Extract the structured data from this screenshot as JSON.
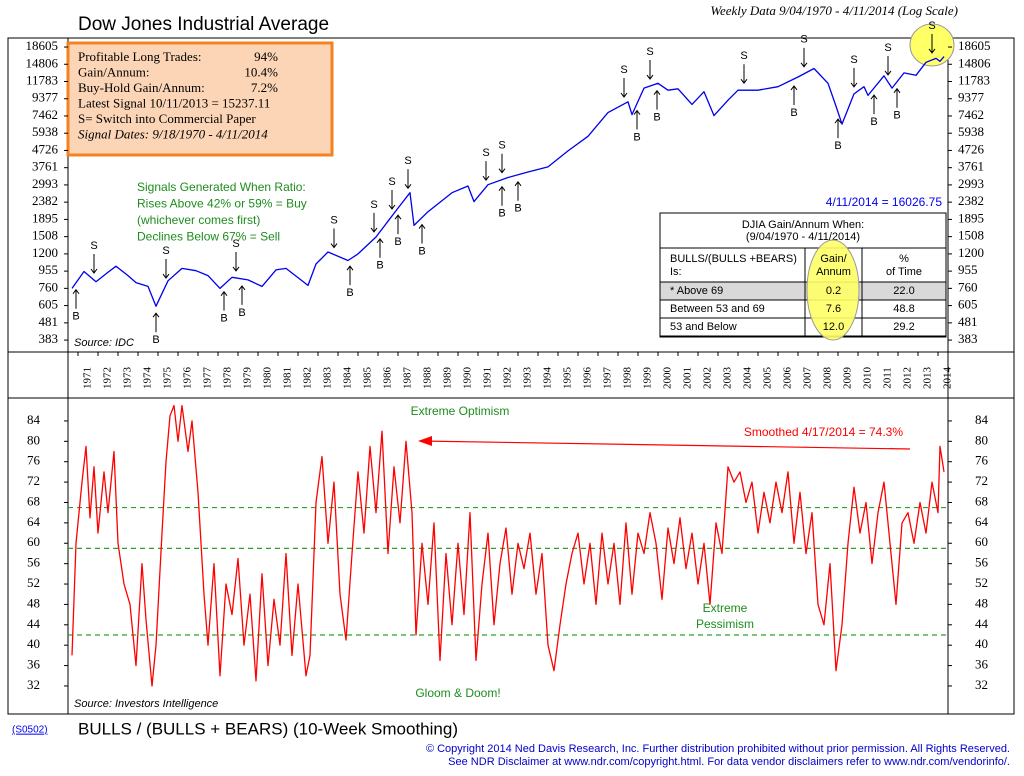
{
  "chart_data": [
    {
      "type": "line",
      "title": "Dow Jones Industrial Average",
      "subtitle": "Weekly Data 9/04/1970 - 4/11/2014 (Log Scale)",
      "log_scale": true,
      "color": "#0000ee",
      "x": [
        1970.7,
        1971.3,
        1971.9,
        1972.5,
        1972.9,
        1973.5,
        1973.9,
        1974.5,
        1974.9,
        1975.5,
        1976.2,
        1976.9,
        1977.5,
        1978.1,
        1978.7,
        1979.5,
        1980.2,
        1980.9,
        1981.4,
        1982.5,
        1982.9,
        1983.5,
        1984.5,
        1985.0,
        1985.9,
        1986.5,
        1987.0,
        1987.6,
        1987.8,
        1988.5,
        1989.7,
        1990.5,
        1990.8,
        1991.5,
        1992.5,
        1993.5,
        1994.5,
        1995.5,
        1996.5,
        1997.5,
        1998.5,
        1998.7,
        1999.3,
        2000.0,
        2000.5,
        2001.0,
        2001.7,
        2002.3,
        2002.8,
        2003.5,
        2004.0,
        2005.0,
        2006.0,
        2007.0,
        2007.8,
        2008.5,
        2008.9,
        2009.2,
        2009.8,
        2010.3,
        2010.5,
        2011.3,
        2011.7,
        2012.3,
        2012.9,
        2013.4,
        2013.9,
        2014.1,
        2014.3
      ],
      "values": [
        760,
        950,
        830,
        940,
        1020,
        900,
        820,
        780,
        600,
        840,
        990,
        960,
        900,
        760,
        880,
        850,
        780,
        970,
        990,
        790,
        1050,
        1230,
        1100,
        1200,
        1500,
        1850,
        2200,
        2700,
        1750,
        2100,
        2700,
        2950,
        2400,
        3000,
        3300,
        3550,
        3800,
        4700,
        5700,
        7800,
        9000,
        7600,
        10800,
        11500,
        10500,
        10700,
        8700,
        10300,
        7500,
        9200,
        10500,
        10500,
        11000,
        12500,
        14000,
        11500,
        8500,
        6700,
        10000,
        11000,
        9800,
        12700,
        10800,
        13200,
        12800,
        15200,
        16000,
        15400,
        16400
      ],
      "xlim": [
        1970.5,
        2014.5
      ],
      "xticks": [
        1971,
        1972,
        1973,
        1974,
        1975,
        1976,
        1977,
        1978,
        1979,
        1980,
        1981,
        1982,
        1983,
        1984,
        1985,
        1986,
        1987,
        1988,
        1989,
        1990,
        1991,
        1992,
        1993,
        1994,
        1995,
        1996,
        1997,
        1998,
        1999,
        2000,
        2001,
        2002,
        2003,
        2004,
        2005,
        2006,
        2007,
        2008,
        2009,
        2010,
        2011,
        2012,
        2013,
        2014
      ],
      "ylim": [
        327,
        20970
      ],
      "yticks": [
        383,
        481,
        605,
        760,
        955,
        1200,
        1508,
        1895,
        2382,
        2993,
        3761,
        4726,
        5938,
        7462,
        9377,
        11783,
        14806,
        18605
      ],
      "signals": [
        {
          "x": 1970.9,
          "label": "B"
        },
        {
          "x": 1971.8,
          "label": "S"
        },
        {
          "x": 1974.9,
          "label": "B"
        },
        {
          "x": 1975.4,
          "label": "S"
        },
        {
          "x": 1978.3,
          "label": "B"
        },
        {
          "x": 1978.9,
          "label": "S"
        },
        {
          "x": 1979.2,
          "label": "B"
        },
        {
          "x": 1983.8,
          "label": "S"
        },
        {
          "x": 1984.6,
          "label": "B"
        },
        {
          "x": 1985.8,
          "label": "S"
        },
        {
          "x": 1986.1,
          "label": "B"
        },
        {
          "x": 1986.7,
          "label": "S"
        },
        {
          "x": 1987.0,
          "label": "B"
        },
        {
          "x": 1987.5,
          "label": "S"
        },
        {
          "x": 1988.2,
          "label": "B"
        },
        {
          "x": 1991.4,
          "label": "S"
        },
        {
          "x": 1992.2,
          "label": "S"
        },
        {
          "x": 1992.2,
          "label": "B"
        },
        {
          "x": 1993.0,
          "label": "B"
        },
        {
          "x": 1998.3,
          "label": "S"
        },
        {
          "x": 1998.95,
          "label": "B"
        },
        {
          "x": 1999.6,
          "label": "S"
        },
        {
          "x": 1999.95,
          "label": "B"
        },
        {
          "x": 2004.3,
          "label": "S"
        },
        {
          "x": 2006.8,
          "label": "B"
        },
        {
          "x": 2007.3,
          "label": "S"
        },
        {
          "x": 2009.0,
          "label": "B"
        },
        {
          "x": 2009.8,
          "label": "S"
        },
        {
          "x": 2010.8,
          "label": "B"
        },
        {
          "x": 2011.5,
          "label": "S"
        },
        {
          "x": 2011.95,
          "label": "B"
        },
        {
          "x": 2013.7,
          "label": "S"
        }
      ],
      "info_box": {
        "rows": [
          [
            "Profitable Long Trades:",
            "94%"
          ],
          [
            "Gain/Annum:",
            "10.4%"
          ],
          [
            "Buy-Hold Gain/Annum:",
            "7.2%"
          ]
        ],
        "lines": [
          "Latest Signal 10/11/2013 = 15237.11",
          "S= Switch into Commercial Paper"
        ],
        "italic": "Signal Dates: 9/18/1970 - 4/11/2014"
      },
      "note": [
        "Signals Generated When Ratio:",
        "Rises Above 42% or 59% = Buy",
        "(whichever comes first)",
        "Declines Below 67% = Sell"
      ],
      "latest_label": "4/11/2014 = 16026.75",
      "source": "Source: IDC",
      "table": {
        "title": [
          "DJIA Gain/Annum When:",
          "(9/04/1970 - 4/11/2014)"
        ],
        "header": [
          [
            "BULLS/(BULLS +BEARS)",
            "Is:"
          ],
          [
            "Gain/",
            "Annum"
          ],
          [
            "%",
            "of Time"
          ]
        ],
        "rows": [
          [
            "* Above 69",
            "0.2",
            "22.0"
          ],
          [
            "Between 53 and 69",
            "7.6",
            "48.8"
          ],
          [
            "53 and Below",
            "12.0",
            "29.2"
          ]
        ]
      }
    },
    {
      "type": "line",
      "title": "BULLS / (BULLS + BEARS) (10-Week Smoothing)",
      "code": "(S0502)",
      "color": "#ff0000",
      "x": [
        1970.7,
        1970.9,
        1971.2,
        1971.4,
        1971.6,
        1971.8,
        1972.0,
        1972.3,
        1972.5,
        1972.8,
        1973.0,
        1973.3,
        1973.6,
        1973.9,
        1974.2,
        1974.4,
        1974.7,
        1974.9,
        1975.2,
        1975.4,
        1975.6,
        1975.8,
        1976.0,
        1976.2,
        1976.5,
        1976.7,
        1977.0,
        1977.3,
        1977.5,
        1977.8,
        1978.1,
        1978.4,
        1978.7,
        1979.0,
        1979.3,
        1979.6,
        1979.9,
        1980.2,
        1980.5,
        1980.8,
        1981.1,
        1981.4,
        1981.7,
        1982.0,
        1982.4,
        1982.6,
        1982.9,
        1983.2,
        1983.5,
        1983.8,
        1984.1,
        1984.4,
        1984.7,
        1985.0,
        1985.3,
        1985.6,
        1985.9,
        1986.2,
        1986.5,
        1986.8,
        1987.1,
        1987.4,
        1987.7,
        1987.9,
        1988.2,
        1988.5,
        1988.8,
        1989.1,
        1989.4,
        1989.7,
        1990.0,
        1990.3,
        1990.6,
        1990.9,
        1991.2,
        1991.5,
        1991.8,
        1992.1,
        1992.4,
        1992.7,
        1993.0,
        1993.3,
        1993.6,
        1993.9,
        1994.2,
        1994.5,
        1994.8,
        1995.1,
        1995.4,
        1995.7,
        1996.0,
        1996.3,
        1996.6,
        1996.9,
        1997.2,
        1997.5,
        1997.8,
        1998.1,
        1998.4,
        1998.7,
        1999.0,
        1999.3,
        1999.6,
        1999.9,
        2000.2,
        2000.5,
        2000.8,
        2001.1,
        2001.4,
        2001.7,
        2002.0,
        2002.3,
        2002.6,
        2002.9,
        2003.2,
        2003.5,
        2003.8,
        2004.1,
        2004.4,
        2004.7,
        2005.0,
        2005.3,
        2005.6,
        2005.9,
        2006.2,
        2006.5,
        2006.8,
        2007.1,
        2007.4,
        2007.7,
        2008.0,
        2008.3,
        2008.6,
        2008.9,
        2009.2,
        2009.5,
        2009.8,
        2010.1,
        2010.4,
        2010.7,
        2011.0,
        2011.3,
        2011.6,
        2011.9,
        2012.2,
        2012.5,
        2012.8,
        2013.1,
        2013.4,
        2013.7,
        2014.0,
        2014.1,
        2014.3
      ],
      "values": [
        38,
        60,
        72,
        79,
        65,
        75,
        62,
        74,
        66,
        78,
        60,
        52,
        48,
        36,
        56,
        45,
        32,
        40,
        62,
        76,
        85,
        87,
        80,
        87,
        78,
        84,
        70,
        50,
        40,
        56,
        34,
        52,
        46,
        57,
        40,
        50,
        33,
        54,
        36,
        49,
        40,
        58,
        38,
        52,
        34,
        38,
        68,
        77,
        60,
        72,
        50,
        41,
        58,
        74,
        62,
        79,
        66,
        82,
        58,
        75,
        64,
        80,
        66,
        42,
        60,
        48,
        64,
        37,
        58,
        44,
        60,
        46,
        66,
        37,
        52,
        62,
        44,
        56,
        63,
        50,
        60,
        55,
        62,
        50,
        58,
        40,
        35,
        44,
        52,
        58,
        62,
        52,
        60,
        48,
        62,
        52,
        60,
        48,
        64,
        50,
        62,
        58,
        66,
        60,
        49,
        63,
        56,
        65,
        55,
        62,
        52,
        60,
        48,
        64,
        58,
        75,
        72,
        74,
        68,
        72,
        62,
        70,
        64,
        72,
        66,
        74,
        60,
        70,
        58,
        66,
        48,
        44,
        56,
        35,
        44,
        60,
        71,
        62,
        68,
        56,
        66,
        72,
        60,
        48,
        64,
        66,
        60,
        68,
        62,
        72,
        66,
        79,
        74
      ],
      "xlim": [
        1970.5,
        2014.5
      ],
      "ylim": [
        26.5,
        88.5
      ],
      "yticks": [
        32,
        36,
        40,
        44,
        48,
        52,
        56,
        60,
        64,
        68,
        72,
        76,
        80,
        84
      ],
      "reference_lines": [
        67,
        59,
        42
      ],
      "reference_color": "#2ca02c",
      "annotations": {
        "optimism": "Extreme Optimism",
        "pessimism": [
          "Extreme",
          "Pessimism"
        ],
        "gloom": "Gloom & Doom!",
        "smoothed": "Smoothed 4/17/2014 =  74.3%",
        "source": "Source: Investors Intelligence"
      }
    }
  ],
  "footer": [
    "© Copyright 2014 Ned Davis Research, Inc.  Further distribution prohibited without prior permission.  All Rights Reserved.",
    "See NDR Disclaimer at www.ndr.com/copyright.html. For data vendor disclaimers refer to www.ndr.com/vendorinfo/."
  ]
}
